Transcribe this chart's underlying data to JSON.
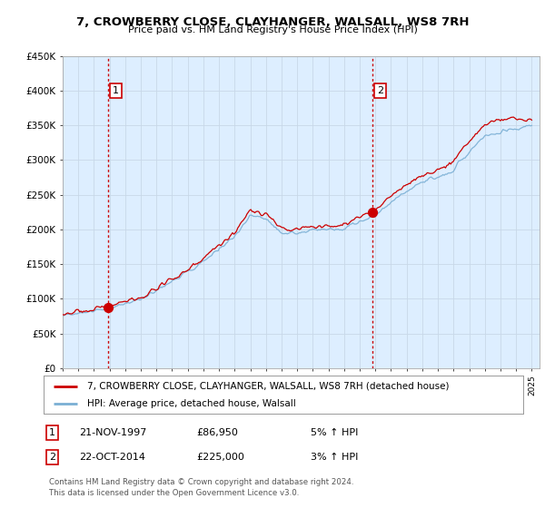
{
  "title": "7, CROWBERRY CLOSE, CLAYHANGER, WALSALL, WS8 7RH",
  "subtitle": "Price paid vs. HM Land Registry's House Price Index (HPI)",
  "ylim": [
    0,
    450000
  ],
  "yticks": [
    0,
    50000,
    100000,
    150000,
    200000,
    250000,
    300000,
    350000,
    400000,
    450000
  ],
  "ytick_labels": [
    "£0",
    "£50K",
    "£100K",
    "£150K",
    "£200K",
    "£250K",
    "£300K",
    "£350K",
    "£400K",
    "£450K"
  ],
  "sale1_year": 1997.89,
  "sale1_price": 86950,
  "sale2_year": 2014.8,
  "sale2_price": 225000,
  "line_color_property": "#cc0000",
  "line_color_hpi": "#7aafd4",
  "dot_color": "#cc0000",
  "vline_color": "#cc0000",
  "bg_plot": "#ddeeff",
  "legend_label_property": "7, CROWBERRY CLOSE, CLAYHANGER, WALSALL, WS8 7RH (detached house)",
  "legend_label_hpi": "HPI: Average price, detached house, Walsall",
  "footnote": "Contains HM Land Registry data © Crown copyright and database right 2024.\nThis data is licensed under the Open Government Licence v3.0.",
  "table_rows": [
    {
      "num": "1",
      "date": "21-NOV-1997",
      "price": "£86,950",
      "pct": "5% ↑ HPI"
    },
    {
      "num": "2",
      "date": "22-OCT-2014",
      "price": "£225,000",
      "pct": "3% ↑ HPI"
    }
  ],
  "background_color": "#ffffff",
  "grid_color": "#c8d8e8"
}
